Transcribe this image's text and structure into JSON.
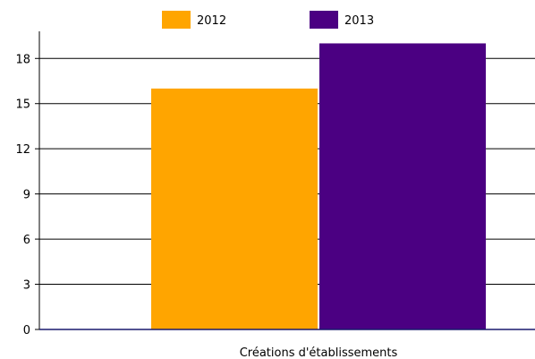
{
  "chart_data": {
    "type": "bar",
    "categories": [
      "Créations d'établissements"
    ],
    "series": [
      {
        "name": "2012",
        "values": [
          16
        ],
        "color": "#FFA500"
      },
      {
        "name": "2013",
        "values": [
          19
        ],
        "color": "#4B0082"
      }
    ],
    "ylim": [
      0,
      19.8
    ],
    "yticks": [
      0,
      3,
      6,
      9,
      12,
      15,
      18
    ],
    "grid": true,
    "legend": "top-center",
    "axis_color": "#1a1a6e"
  }
}
